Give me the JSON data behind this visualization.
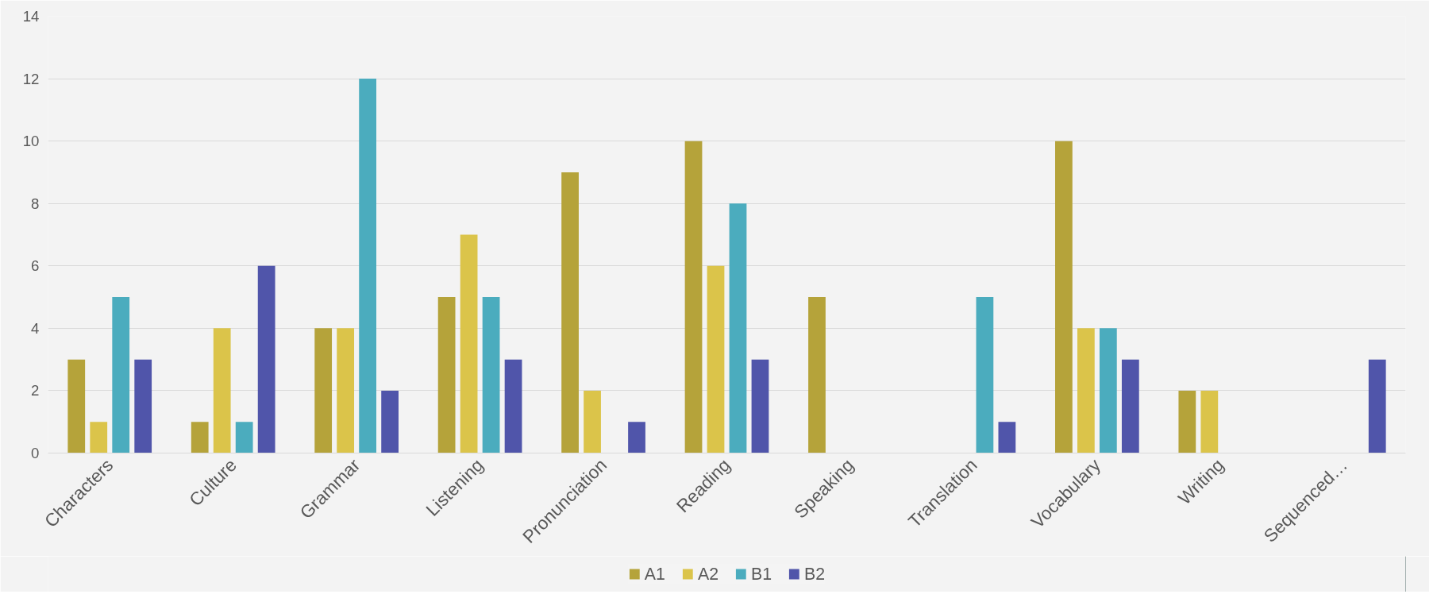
{
  "chart_data": {
    "type": "bar",
    "categories": [
      "Characters",
      "Culture",
      "Grammar",
      "Listening",
      "Pronunciation",
      "Reading",
      "Speaking",
      "Translation",
      "Vocabulary",
      "Writing",
      "Sequenced…"
    ],
    "series": [
      {
        "name": "A1",
        "color": "#b5a33a",
        "values": [
          3,
          1,
          4,
          5,
          9,
          10,
          5,
          null,
          10,
          2,
          null
        ]
      },
      {
        "name": "A2",
        "color": "#dbc44a",
        "values": [
          1,
          4,
          4,
          7,
          2,
          6,
          null,
          null,
          4,
          2,
          null
        ]
      },
      {
        "name": "B1",
        "color": "#4bacbe",
        "values": [
          5,
          1,
          12,
          5,
          null,
          8,
          null,
          5,
          4,
          null,
          null
        ]
      },
      {
        "name": "B2",
        "color": "#5055aa",
        "values": [
          3,
          6,
          2,
          3,
          1,
          3,
          null,
          1,
          3,
          null,
          3
        ]
      }
    ],
    "ylim": [
      0,
      14
    ],
    "yticks": [
      0,
      2,
      4,
      6,
      8,
      10,
      12,
      14
    ],
    "grid": "y",
    "legend": "bottom"
  }
}
